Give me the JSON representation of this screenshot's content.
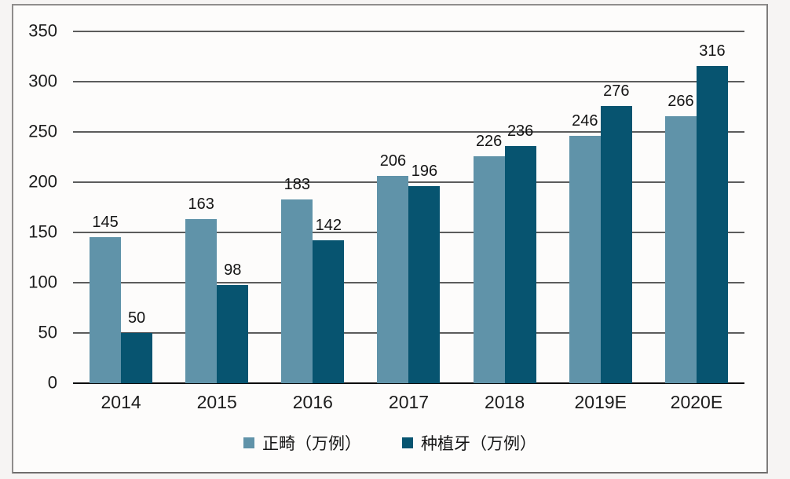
{
  "chart_data": {
    "type": "bar",
    "title": "",
    "xlabel": "",
    "ylabel": "",
    "categories": [
      "2014",
      "2015",
      "2016",
      "2017",
      "2018",
      "2019E",
      "2020E"
    ],
    "series": [
      {
        "name": "正畸（万例）",
        "color": "#6093A9",
        "values": [
          145,
          163,
          183,
          206,
          226,
          246,
          266
        ]
      },
      {
        "name": "种植牙（万例）",
        "color": "#075470",
        "values": [
          50,
          98,
          142,
          196,
          236,
          276,
          316
        ]
      }
    ],
    "ylim": [
      0,
      350
    ],
    "yticks": [
      0,
      50,
      100,
      150,
      200,
      250,
      300,
      350
    ],
    "grid": true,
    "data_labels": true,
    "legend_position": "bottom"
  },
  "style": {
    "series1_color": "#6093A9",
    "series2_color": "#075470",
    "gridline_color": "#5c5c5c",
    "axis_line_color": "#0d0d0d",
    "text_color": "#1c1c1c",
    "frame_border_color": "#8f8d8c",
    "chart_background": "#fdfcfb",
    "page_background": "#f6f4f3"
  }
}
